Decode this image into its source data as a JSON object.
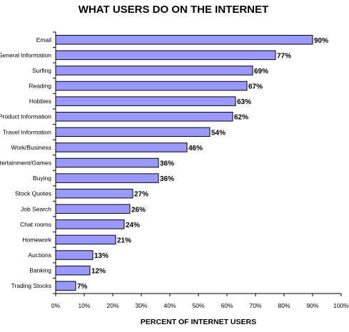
{
  "chart_data": {
    "type": "bar",
    "orientation": "horizontal",
    "title": "WHAT USERS DO ON THE INTERNET",
    "xlabel": "PERCENT OF INTERNET USERS",
    "ylabel": "",
    "categories": [
      "Email",
      "General Information",
      "Surfing",
      "Reading",
      "Hobbies",
      "Product Information",
      "Travel Information",
      "Work/Business",
      "Entertainment/Games",
      "Buying",
      "Stock Quotes",
      "Job Search",
      "Chat rooms",
      "Homework",
      "Auctions",
      "Banking",
      "Trading Stocks"
    ],
    "values": [
      90,
      77,
      69,
      67,
      63,
      62,
      54,
      46,
      36,
      36,
      27,
      26,
      24,
      21,
      13,
      12,
      7
    ],
    "value_labels": [
      "90%",
      "77%",
      "69%",
      "67%",
      "63%",
      "62%",
      "54%",
      "46%",
      "36%",
      "36%",
      "27%",
      "26%",
      "24%",
      "21%",
      "13%",
      "12%",
      "7%"
    ],
    "xlim": [
      0,
      100
    ],
    "xticks": [
      "0%",
      "10%",
      "20%",
      "30%",
      "40%",
      "50%",
      "60%",
      "70%",
      "80%",
      "90%",
      "100%"
    ],
    "grid": false,
    "legend": "none",
    "bar_color": "#9999ff",
    "bar_edge_color": "#000000"
  }
}
